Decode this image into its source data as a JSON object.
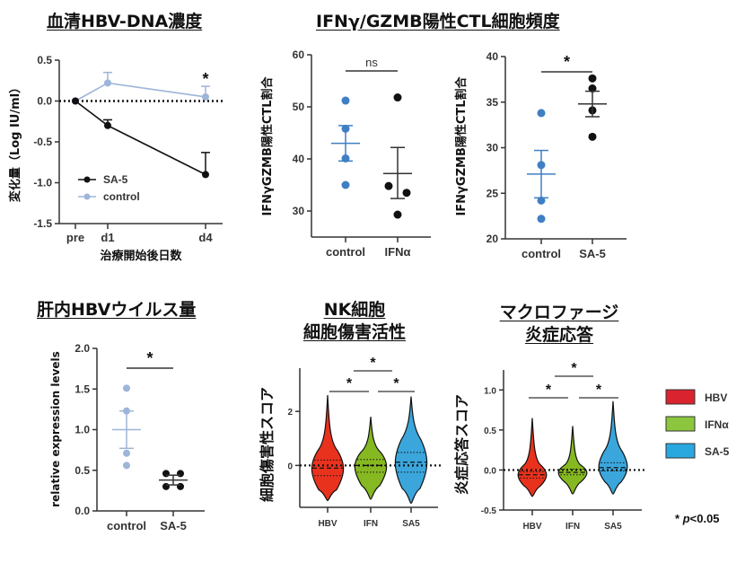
{
  "titles": {
    "serum": "血清HBV-DNA濃度",
    "ctl": "IFNγ/GZMB陽性CTL細胞頻度",
    "liver": "肝内HBVウイルス量",
    "nk_line1": "NK細胞",
    "nk_line2": "細胞傷害活性",
    "mac_line1": "マクロファージ",
    "mac_line2": "炎症応答"
  },
  "colors": {
    "black": "#111111",
    "control_light": "#9db5d9",
    "control_blue": "#3f7fc4",
    "hbv_red": "#e8321e",
    "ifn_green": "#86b821",
    "sa5_blue": "#3aa6dc"
  },
  "legend_violin": {
    "items": [
      {
        "label": "HBV",
        "color": "#d9232e"
      },
      {
        "label": "IFNα",
        "color": "#8cc63f"
      },
      {
        "label": "SA-5",
        "color": "#29a8e0"
      }
    ],
    "pnote_star": "*",
    "pnote_p": "p",
    "pnote_rest": "<0.05"
  },
  "chart_data": [
    {
      "id": "serum",
      "type": "line",
      "title": "血清HBV-DNA濃度",
      "xlabel": "治療開始後日数",
      "ylabel": "変化量（Log IU/ml）",
      "categories": [
        "pre",
        "d1",
        "d4"
      ],
      "x_days": [
        0,
        1,
        4
      ],
      "ylim": [
        -1.5,
        0.5
      ],
      "yticks": [
        "0.5",
        "0.0",
        "-0.5",
        "-1.0",
        "-1.5"
      ],
      "ytick_values": [
        0.5,
        0.0,
        -0.5,
        -1.0,
        -1.5
      ],
      "reference_line": 0,
      "series": [
        {
          "name": "SA-5",
          "color": "#111111",
          "values": [
            0.0,
            -0.3,
            -0.9
          ],
          "error": [
            0,
            0.07,
            0.27
          ]
        },
        {
          "name": "control",
          "color": "#9db5d9",
          "values": [
            0.0,
            0.22,
            0.05
          ],
          "error": [
            0,
            0.13,
            0.13
          ]
        }
      ],
      "annotations": [
        {
          "text": "*",
          "at": "d4"
        }
      ],
      "legend": "bottom-left"
    },
    {
      "id": "ctl_ifn",
      "type": "scatter",
      "ylabel": "IFNγGZMB陽性CTL割合",
      "categories": [
        "control",
        "IFNα"
      ],
      "ylim": [
        25,
        60
      ],
      "yticks": [
        "60",
        "50",
        "40",
        "30"
      ],
      "ytick_values": [
        60,
        50,
        40,
        30
      ],
      "series": [
        {
          "name": "control",
          "color": "#3f7fc4",
          "points": [
            51.2,
            45.8,
            40.1,
            35.0
          ],
          "mean": 43.0,
          "sem_low": 39.6,
          "sem_high": 46.4
        },
        {
          "name": "IFNα",
          "color": "#111111",
          "points": [
            51.8,
            34.8,
            33.5,
            29.3
          ],
          "mean": 37.2,
          "sem_low": 32.4,
          "sem_high": 42.2
        }
      ],
      "significance": "ns"
    },
    {
      "id": "ctl_sa5",
      "type": "scatter",
      "ylabel": "IFNγGZMB陽性CTL割合",
      "categories": [
        "control",
        "SA-5"
      ],
      "ylim": [
        20,
        40
      ],
      "yticks": [
        "40",
        "35",
        "30",
        "25",
        "20"
      ],
      "ytick_values": [
        40,
        35,
        30,
        25,
        20
      ],
      "series": [
        {
          "name": "control",
          "color": "#3f7fc4",
          "points": [
            33.8,
            28.1,
            24.2,
            22.2
          ],
          "mean": 27.1,
          "sem_low": 24.5,
          "sem_high": 29.7
        },
        {
          "name": "SA-5",
          "color": "#111111",
          "points": [
            37.6,
            36.5,
            34.1,
            31.2
          ],
          "mean": 34.8,
          "sem_low": 33.4,
          "sem_high": 36.2
        }
      ],
      "significance": "*"
    },
    {
      "id": "liver",
      "type": "scatter",
      "title": "肝内HBVウイルス量",
      "ylabel": "relative expression levels",
      "categories": [
        "control",
        "SA-5"
      ],
      "ylim": [
        0,
        2.0
      ],
      "yticks": [
        "2.0",
        "1.5",
        "1.0",
        "0.5",
        "0.0"
      ],
      "ytick_values": [
        2.0,
        1.5,
        1.0,
        0.5,
        0.0
      ],
      "series": [
        {
          "name": "control",
          "color": "#9db5d9",
          "points": [
            1.51,
            1.23,
            0.71,
            0.56
          ],
          "mean": 1.0,
          "sem_low": 0.77,
          "sem_high": 1.23
        },
        {
          "name": "SA-5",
          "color": "#111111",
          "points": [
            0.46,
            0.46,
            0.3,
            0.3
          ],
          "mean": 0.38,
          "sem_low": 0.32,
          "sem_high": 0.44
        }
      ],
      "significance": "*"
    },
    {
      "id": "nk",
      "type": "violin",
      "title": "NK細胞 細胞傷害活性",
      "ylabel": "細胞傷害性スコア",
      "categories": [
        "HBV",
        "IFN",
        "SA5"
      ],
      "ylim": [
        -1.55,
        3.6
      ],
      "yticks": [
        "2",
        "0"
      ],
      "ytick_values": [
        2,
        0
      ],
      "reference_line": 0,
      "series": [
        {
          "name": "HBV",
          "color": "#e8321e",
          "min": -1.3,
          "max": 2.6,
          "q1": -0.38,
          "median": -0.1,
          "q3": 0.2,
          "body_low": -0.9,
          "body_high": 0.9
        },
        {
          "name": "IFN",
          "color": "#86b821",
          "min": -1.25,
          "max": 1.8,
          "q1": -0.25,
          "median": 0.0,
          "q3": 0.22,
          "body_low": -0.75,
          "body_high": 0.75
        },
        {
          "name": "SA5",
          "color": "#3aa6dc",
          "min": -1.4,
          "max": 2.55,
          "q1": -0.25,
          "median": 0.12,
          "q3": 0.48,
          "body_low": -0.85,
          "body_high": 1.4
        }
      ],
      "comparisons": [
        {
          "pair": [
            "HBV",
            "IFN"
          ],
          "text": "*"
        },
        {
          "pair": [
            "IFN",
            "SA5"
          ],
          "text": "*"
        },
        {
          "pair": [
            "HBV",
            "SA5"
          ],
          "text": "*"
        }
      ]
    },
    {
      "id": "macrophage",
      "type": "violin",
      "title": "マクロファージ 炎症応答",
      "ylabel": "炎症応答スコア",
      "categories": [
        "HBV",
        "IFN",
        "SA5"
      ],
      "ylim": [
        -0.5,
        1.25
      ],
      "yticks": [
        "1.0",
        "0.5",
        "0.0",
        "-0.5"
      ],
      "ytick_values": [
        1.0,
        0.5,
        0.0,
        -0.5
      ],
      "reference_line": 0,
      "series": [
        {
          "name": "HBV",
          "color": "#e8321e",
          "min": -0.33,
          "max": 0.65,
          "q1": -0.1,
          "median": -0.06,
          "q3": -0.02,
          "body_low": -0.2,
          "body_high": 0.12
        },
        {
          "name": "IFN",
          "color": "#86b821",
          "min": -0.3,
          "max": 0.55,
          "q1": -0.06,
          "median": -0.03,
          "q3": 0.01,
          "body_low": -0.15,
          "body_high": 0.1
        },
        {
          "name": "SA5",
          "color": "#3aa6dc",
          "min": -0.3,
          "max": 0.86,
          "q1": -0.01,
          "median": 0.03,
          "q3": 0.09,
          "body_low": -0.15,
          "body_high": 0.35
        }
      ],
      "comparisons": [
        {
          "pair": [
            "HBV",
            "IFN"
          ],
          "text": "*"
        },
        {
          "pair": [
            "IFN",
            "SA5"
          ],
          "text": "*"
        },
        {
          "pair": [
            "HBV",
            "SA5"
          ],
          "text": "*"
        }
      ]
    }
  ]
}
